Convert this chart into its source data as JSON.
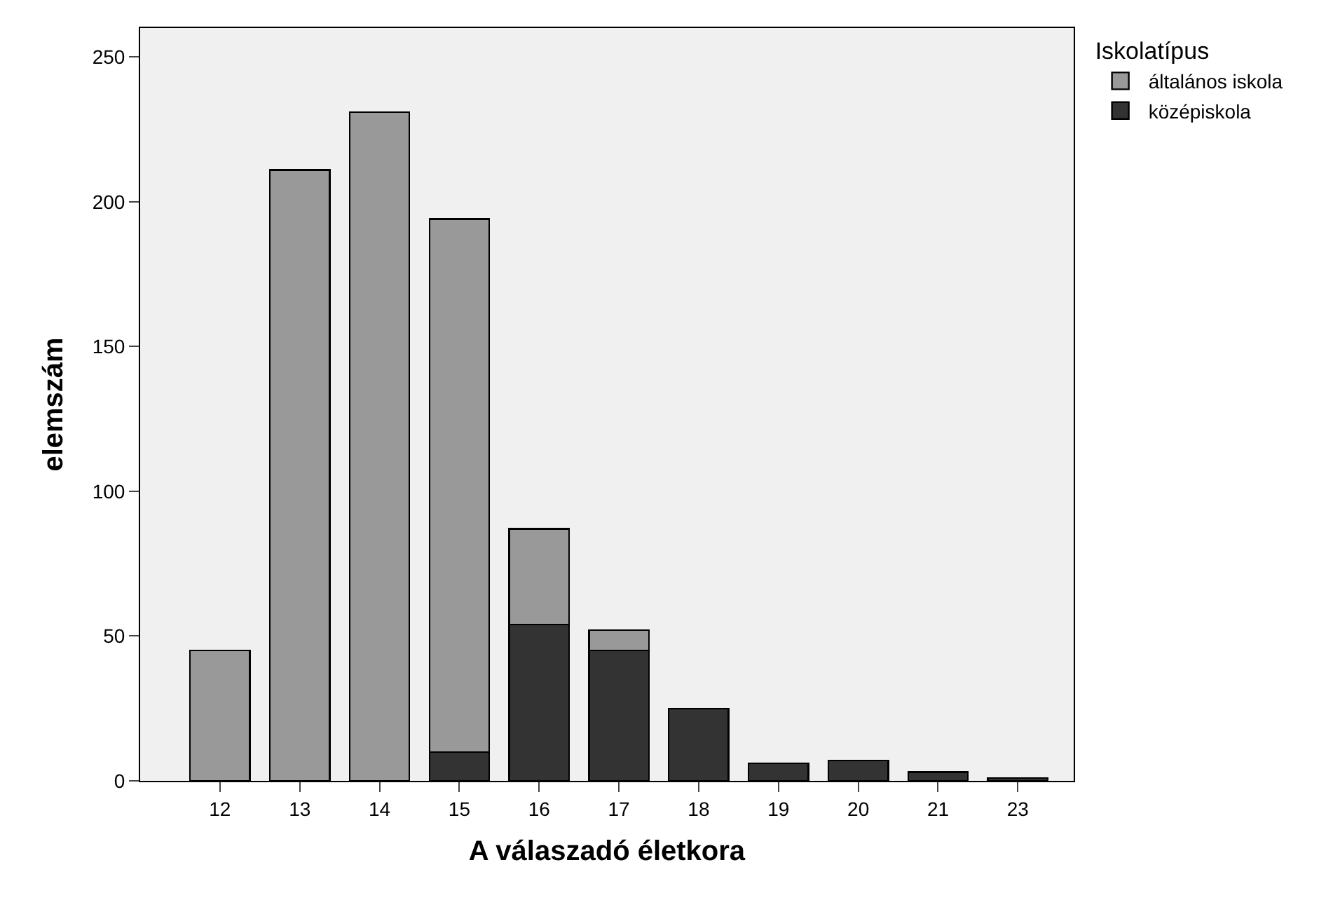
{
  "chart_data": {
    "type": "bar",
    "stacked": true,
    "xlabel": "A válaszadó életkora",
    "ylabel": "elemszám",
    "legend_title": "Iskolatípus",
    "legend": "top right",
    "categories": [
      "12",
      "13",
      "14",
      "15",
      "16",
      "17",
      "18",
      "19",
      "20",
      "21",
      "23"
    ],
    "series": [
      {
        "name": "középiskola",
        "color": "#333333",
        "values": [
          null,
          null,
          null,
          10,
          54,
          45,
          25,
          6,
          7,
          3,
          1
        ]
      },
      {
        "name": "általános iskola",
        "color": "#999999",
        "values": [
          45,
          211,
          231,
          184,
          33,
          7,
          null,
          null,
          null,
          null,
          null
        ]
      }
    ],
    "ylim": [
      0,
      260
    ],
    "yticks": [
      0,
      50,
      100,
      150,
      200,
      250
    ],
    "grid": false
  }
}
